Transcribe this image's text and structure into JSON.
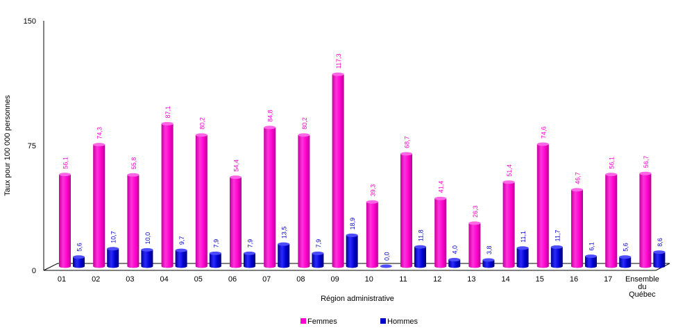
{
  "chart_data": {
    "type": "bar",
    "title": "",
    "xlabel": "Région administrative",
    "ylabel": "Taux pour 100 000 personnes",
    "ylim": [
      0,
      150
    ],
    "yticks": [
      "0",
      "75",
      "150"
    ],
    "legend_position": "bottom",
    "categories": [
      "01",
      "02",
      "03",
      "04",
      "05",
      "06",
      "07",
      "08",
      "09",
      "10",
      "11",
      "12",
      "13",
      "14",
      "15",
      "16",
      "17",
      "Ensemble du Québec"
    ],
    "series": [
      {
        "name": "Femmes",
        "color": "#ff00cc",
        "values": [
          56.1,
          74.3,
          55.8,
          87.1,
          80.2,
          54.4,
          84.8,
          80.2,
          117.3,
          39.3,
          68.7,
          41.4,
          26.3,
          51.4,
          74.6,
          46.7,
          56.1,
          56.7
        ],
        "labels": [
          "56,1",
          "74,3",
          "55,8",
          "87,1",
          "80,2",
          "54,4",
          "84,8",
          "80,2",
          "117,3",
          "39,3",
          "68,7",
          "41,4",
          "26,3",
          "51,4",
          "74,6",
          "46,7",
          "56,1",
          "56,7"
        ]
      },
      {
        "name": "Hommes",
        "color": "#0000cc",
        "values": [
          5.6,
          10.7,
          10.0,
          9.7,
          7.9,
          7.9,
          13.5,
          7.9,
          18.9,
          0.0,
          11.8,
          4.0,
          3.8,
          11.1,
          11.7,
          6.1,
          5.6,
          8.6
        ],
        "labels": [
          "5,6",
          "10,7",
          "10,0",
          "9,7",
          "7,9",
          "7,9",
          "13,5",
          "7,9",
          "18,9",
          "0,0",
          "11,8",
          "4,0",
          "3,8",
          "11,1",
          "11,7",
          "6,1",
          "5,6",
          "8,6"
        ]
      }
    ]
  }
}
